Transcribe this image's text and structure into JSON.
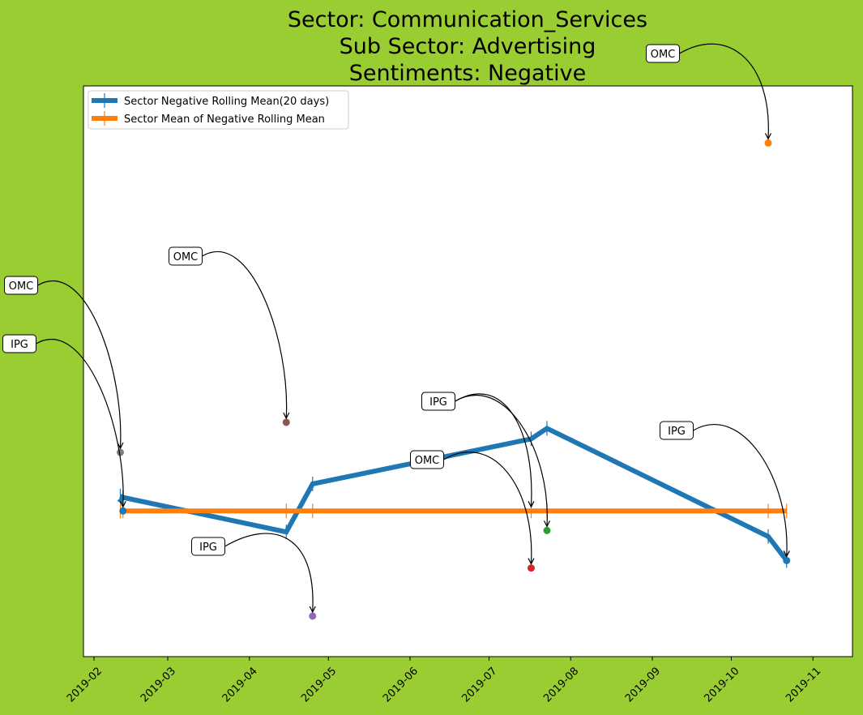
{
  "chart_data": {
    "type": "line",
    "title": [
      "Sector:  Communication_Services",
      "Sub Sector:  Advertising",
      "Sentiments:  Negative"
    ],
    "xlabel": "",
    "ylabel": "",
    "x_ticks": [
      "2019-02",
      "2019-03",
      "2019-04",
      "2019-05",
      "2019-06",
      "2019-07",
      "2019-08",
      "2019-09",
      "2019-10",
      "2019-11"
    ],
    "xlim": [
      "2019-01-28",
      "2019-11-16"
    ],
    "ylim": [
      -0.24,
      0.14
    ],
    "grid": false,
    "legend": "upper left",
    "series": [
      {
        "name": "Sector Negative Rolling Mean(20 days)",
        "color": "#1f77b4",
        "x": [
          "2019-02-11",
          "2019-02-12",
          "2019-04-15",
          "2019-04-25",
          "2019-07-17",
          "2019-07-23",
          "2019-10-15",
          "2019-10-22"
        ],
        "y": [
          -0.133,
          -0.134,
          -0.157,
          -0.125,
          -0.095,
          -0.088,
          -0.16,
          -0.176
        ]
      },
      {
        "name": "Sector Mean of Negative Rolling Mean",
        "color": "#ff7f0e",
        "x": [
          "2019-02-11",
          "2019-02-12",
          "2019-04-15",
          "2019-04-25",
          "2019-07-17",
          "2019-07-23",
          "2019-10-15",
          "2019-10-22"
        ],
        "y": [
          -0.143,
          -0.143,
          -0.143,
          -0.143,
          -0.143,
          -0.143,
          -0.143,
          -0.143
        ]
      }
    ],
    "points": [
      {
        "label": "IPG",
        "x": "2019-02-12",
        "y": -0.143,
        "color": "#1f77b4"
      },
      {
        "label": "OMC",
        "x": "2019-02-11",
        "y": -0.104,
        "color": "#7f7f7f"
      },
      {
        "label": "OMC",
        "x": "2019-04-15",
        "y": -0.084,
        "color": "#8c564b"
      },
      {
        "label": "IPG",
        "x": "2019-04-25",
        "y": -0.213,
        "color": "#9467bd"
      },
      {
        "label": "OMC",
        "x": "2019-07-17",
        "y": -0.181,
        "color": "#d62728"
      },
      {
        "label": "IPG",
        "x": "2019-07-23",
        "y": -0.156,
        "color": "#2ca02c"
      },
      {
        "label": "OMC",
        "x": "2019-10-15",
        "y": 0.102,
        "color": "#ff7f0e"
      },
      {
        "label": "IPG",
        "x": "2019-10-22",
        "y": -0.176,
        "color": "#1f77b4"
      }
    ],
    "extra_annotations": [
      {
        "label": "IPG",
        "target_x": "2019-07-17",
        "target_y": -0.143,
        "box_x": 541,
        "box_y": 495
      }
    ]
  }
}
